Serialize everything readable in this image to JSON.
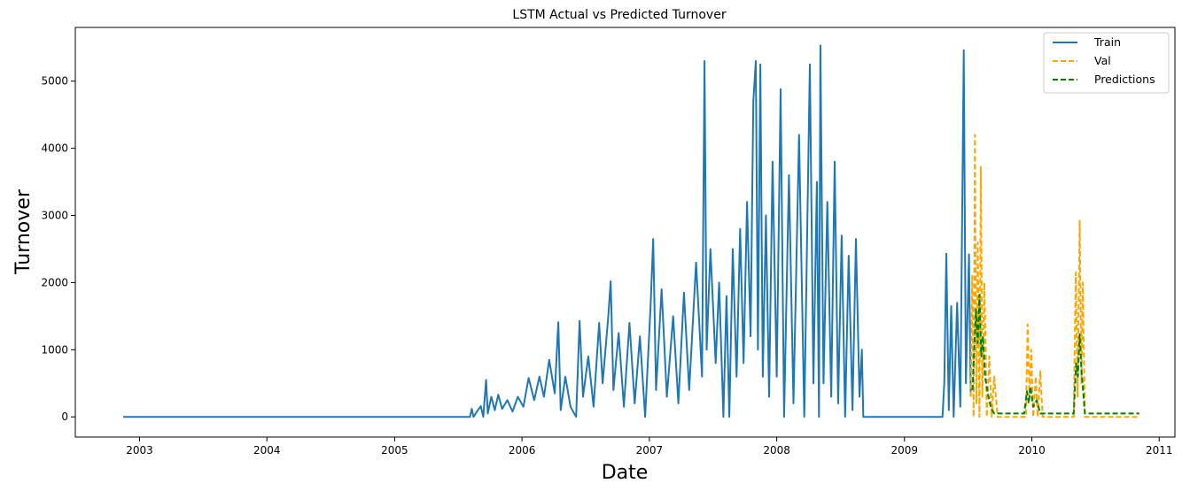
{
  "chart_data": {
    "type": "line",
    "title": "LSTM Actual vs Predicted Turnover",
    "xlabel": "Date",
    "ylabel": "Turnover",
    "xlim": [
      "2002-07-01",
      "2011-02-15"
    ],
    "ylim": [
      -300,
      5800
    ],
    "x_ticks": [
      "2003",
      "2004",
      "2005",
      "2006",
      "2007",
      "2008",
      "2009",
      "2010",
      "2011"
    ],
    "y_ticks": [
      0,
      1000,
      2000,
      3000,
      4000,
      5000
    ],
    "grid": false,
    "legend_position": "top-right",
    "colors": {
      "Train": "#1f77b4",
      "Val": "#ffa500",
      "Predictions": "#008000"
    },
    "series": [
      {
        "name": "Train",
        "style": "solid",
        "points": [
          [
            "2002-11-15",
            0
          ],
          [
            "2005-08-05",
            0
          ],
          [
            "2005-08-10",
            120
          ],
          [
            "2005-08-15",
            0
          ],
          [
            "2005-08-25",
            80
          ],
          [
            "2005-09-05",
            160
          ],
          [
            "2005-09-12",
            0
          ],
          [
            "2005-09-20",
            550
          ],
          [
            "2005-09-25",
            50
          ],
          [
            "2005-10-05",
            300
          ],
          [
            "2005-10-15",
            100
          ],
          [
            "2005-10-25",
            330
          ],
          [
            "2005-11-05",
            120
          ],
          [
            "2005-11-20",
            250
          ],
          [
            "2005-12-05",
            80
          ],
          [
            "2005-12-20",
            300
          ],
          [
            "2006-01-05",
            150
          ],
          [
            "2006-01-20",
            580
          ],
          [
            "2006-02-05",
            250
          ],
          [
            "2006-02-20",
            600
          ],
          [
            "2006-03-05",
            300
          ],
          [
            "2006-03-20",
            850
          ],
          [
            "2006-04-05",
            350
          ],
          [
            "2006-04-15",
            1410
          ],
          [
            "2006-04-22",
            100
          ],
          [
            "2006-05-05",
            600
          ],
          [
            "2006-05-20",
            150
          ],
          [
            "2006-06-05",
            0
          ],
          [
            "2006-06-15",
            1430
          ],
          [
            "2006-06-25",
            300
          ],
          [
            "2006-07-10",
            900
          ],
          [
            "2006-07-25",
            150
          ],
          [
            "2006-08-10",
            1400
          ],
          [
            "2006-08-20",
            500
          ],
          [
            "2006-09-05",
            1480
          ],
          [
            "2006-09-12",
            2020
          ],
          [
            "2006-09-20",
            400
          ],
          [
            "2006-10-05",
            1250
          ],
          [
            "2006-10-20",
            150
          ],
          [
            "2006-11-05",
            1400
          ],
          [
            "2006-11-20",
            200
          ],
          [
            "2006-12-05",
            1200
          ],
          [
            "2006-12-20",
            0
          ],
          [
            "2007-01-05",
            1700
          ],
          [
            "2007-01-12",
            2650
          ],
          [
            "2007-01-20",
            400
          ],
          [
            "2007-02-05",
            1900
          ],
          [
            "2007-02-20",
            300
          ],
          [
            "2007-03-10",
            1500
          ],
          [
            "2007-03-25",
            200
          ],
          [
            "2007-04-10",
            1850
          ],
          [
            "2007-04-25",
            400
          ],
          [
            "2007-05-15",
            2300
          ],
          [
            "2007-06-01",
            600
          ],
          [
            "2007-06-08",
            5300
          ],
          [
            "2007-06-14",
            1000
          ],
          [
            "2007-06-25",
            2500
          ],
          [
            "2007-07-10",
            800
          ],
          [
            "2007-07-20",
            2000
          ],
          [
            "2007-08-01",
            0
          ],
          [
            "2007-08-10",
            1800
          ],
          [
            "2007-08-18",
            0
          ],
          [
            "2007-08-28",
            2500
          ],
          [
            "2007-09-08",
            600
          ],
          [
            "2007-09-18",
            2800
          ],
          [
            "2007-09-28",
            800
          ],
          [
            "2007-10-08",
            3200
          ],
          [
            "2007-10-18",
            1200
          ],
          [
            "2007-10-26",
            4700
          ],
          [
            "2007-11-02",
            5300
          ],
          [
            "2007-11-08",
            1000
          ],
          [
            "2007-11-15",
            5250
          ],
          [
            "2007-11-22",
            600
          ],
          [
            "2007-12-01",
            3000
          ],
          [
            "2007-12-10",
            300
          ],
          [
            "2007-12-20",
            3800
          ],
          [
            "2008-01-01",
            600
          ],
          [
            "2008-01-12",
            4880
          ],
          [
            "2008-01-22",
            0
          ],
          [
            "2008-02-05",
            3600
          ],
          [
            "2008-02-18",
            200
          ],
          [
            "2008-03-05",
            4200
          ],
          [
            "2008-03-20",
            0
          ],
          [
            "2008-04-05",
            5250
          ],
          [
            "2008-04-15",
            500
          ],
          [
            "2008-04-25",
            3500
          ],
          [
            "2008-05-01",
            0
          ],
          [
            "2008-05-05",
            5530
          ],
          [
            "2008-05-14",
            500
          ],
          [
            "2008-05-25",
            3200
          ],
          [
            "2008-06-05",
            300
          ],
          [
            "2008-06-15",
            3800
          ],
          [
            "2008-06-25",
            200
          ],
          [
            "2008-07-05",
            2700
          ],
          [
            "2008-07-15",
            0
          ],
          [
            "2008-07-25",
            2400
          ],
          [
            "2008-08-05",
            100
          ],
          [
            "2008-08-15",
            2650
          ],
          [
            "2008-08-25",
            300
          ],
          [
            "2008-09-01",
            1000
          ],
          [
            "2008-09-05",
            0
          ],
          [
            "2009-04-20",
            0
          ],
          [
            "2009-04-25",
            500
          ],
          [
            "2009-05-01",
            2430
          ],
          [
            "2009-05-08",
            100
          ],
          [
            "2009-05-15",
            1650
          ],
          [
            "2009-05-22",
            0
          ],
          [
            "2009-06-01",
            1700
          ],
          [
            "2009-06-10",
            150
          ],
          [
            "2009-06-20",
            5460
          ],
          [
            "2009-06-26",
            500
          ],
          [
            "2009-07-05",
            2420
          ],
          [
            "2009-07-10",
            300
          ]
        ]
      },
      {
        "name": "Val",
        "style": "dashed",
        "points": [
          [
            "2009-07-10",
            300
          ],
          [
            "2009-07-14",
            2100
          ],
          [
            "2009-07-18",
            0
          ],
          [
            "2009-07-22",
            4200
          ],
          [
            "2009-07-26",
            200
          ],
          [
            "2009-07-30",
            2600
          ],
          [
            "2009-08-04",
            0
          ],
          [
            "2009-08-08",
            3730
          ],
          [
            "2009-08-12",
            300
          ],
          [
            "2009-08-18",
            2000
          ],
          [
            "2009-08-25",
            0
          ],
          [
            "2009-09-01",
            900
          ],
          [
            "2009-09-08",
            0
          ],
          [
            "2009-09-15",
            600
          ],
          [
            "2009-09-25",
            0
          ],
          [
            "2009-12-15",
            0
          ],
          [
            "2009-12-20",
            1380
          ],
          [
            "2009-12-25",
            300
          ],
          [
            "2009-12-30",
            1000
          ],
          [
            "2010-01-05",
            0
          ],
          [
            "2010-01-12",
            600
          ],
          [
            "2010-01-18",
            0
          ],
          [
            "2010-01-25",
            680
          ],
          [
            "2010-02-01",
            0
          ],
          [
            "2010-05-01",
            0
          ],
          [
            "2010-05-07",
            2150
          ],
          [
            "2010-05-12",
            300
          ],
          [
            "2010-05-18",
            2920
          ],
          [
            "2010-05-23",
            500
          ],
          [
            "2010-05-27",
            2000
          ],
          [
            "2010-06-02",
            0
          ],
          [
            "2010-11-05",
            0
          ]
        ]
      },
      {
        "name": "Predictions",
        "style": "dashed",
        "points": [
          [
            "2009-07-15",
            400
          ],
          [
            "2009-07-20",
            1000
          ],
          [
            "2009-07-25",
            1600
          ],
          [
            "2009-07-30",
            1100
          ],
          [
            "2009-08-04",
            1820
          ],
          [
            "2009-08-09",
            900
          ],
          [
            "2009-08-14",
            1200
          ],
          [
            "2009-08-20",
            600
          ],
          [
            "2009-08-28",
            350
          ],
          [
            "2009-09-05",
            150
          ],
          [
            "2009-09-15",
            50
          ],
          [
            "2009-12-10",
            50
          ],
          [
            "2009-12-18",
            380
          ],
          [
            "2009-12-23",
            200
          ],
          [
            "2009-12-28",
            450
          ],
          [
            "2010-01-05",
            150
          ],
          [
            "2010-01-15",
            250
          ],
          [
            "2010-01-25",
            50
          ],
          [
            "2010-05-01",
            50
          ],
          [
            "2010-05-08",
            800
          ],
          [
            "2010-05-13",
            600
          ],
          [
            "2010-05-18",
            1230
          ],
          [
            "2010-05-23",
            700
          ],
          [
            "2010-06-02",
            50
          ],
          [
            "2010-11-05",
            50
          ]
        ]
      }
    ]
  }
}
